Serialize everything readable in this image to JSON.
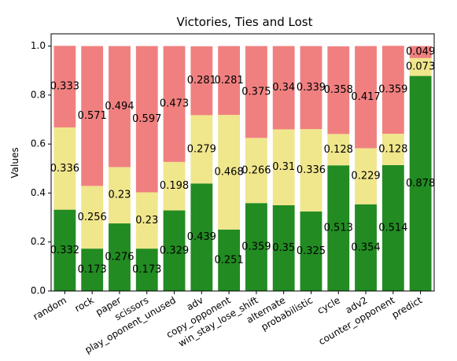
{
  "chart_data": {
    "type": "bar",
    "stacked": true,
    "title": "Victories, Ties and Lost",
    "xlabel": "",
    "ylabel": "Values",
    "ylim": [
      0,
      1.05
    ],
    "yticks": [
      "0.0",
      "0.2",
      "0.4",
      "0.6",
      "0.8",
      "1.0"
    ],
    "grid": false,
    "categories": [
      "random",
      "rock",
      "paper",
      "scissors",
      "play_oponent_unused",
      "adv",
      "copy_opponent",
      "win_stay_lose_shift",
      "alternate",
      "probabilistic",
      "cycle",
      "adv2",
      "counter_opponent",
      "predict"
    ],
    "series": [
      {
        "color": "#228b22",
        "values": [
          0.332,
          0.173,
          0.276,
          0.173,
          0.329,
          0.439,
          0.251,
          0.359,
          0.35,
          0.325,
          0.513,
          0.354,
          0.514,
          0.878
        ]
      },
      {
        "color": "#f0e68c",
        "values": [
          0.336,
          0.256,
          0.23,
          0.23,
          0.198,
          0.279,
          0.468,
          0.266,
          0.31,
          0.336,
          0.128,
          0.229,
          0.128,
          0.073
        ]
      },
      {
        "color": "#f08080",
        "values": [
          0.333,
          0.571,
          0.494,
          0.597,
          0.473,
          0.281,
          0.281,
          0.375,
          0.34,
          0.339,
          0.358,
          0.417,
          0.359,
          0.049
        ]
      }
    ]
  }
}
